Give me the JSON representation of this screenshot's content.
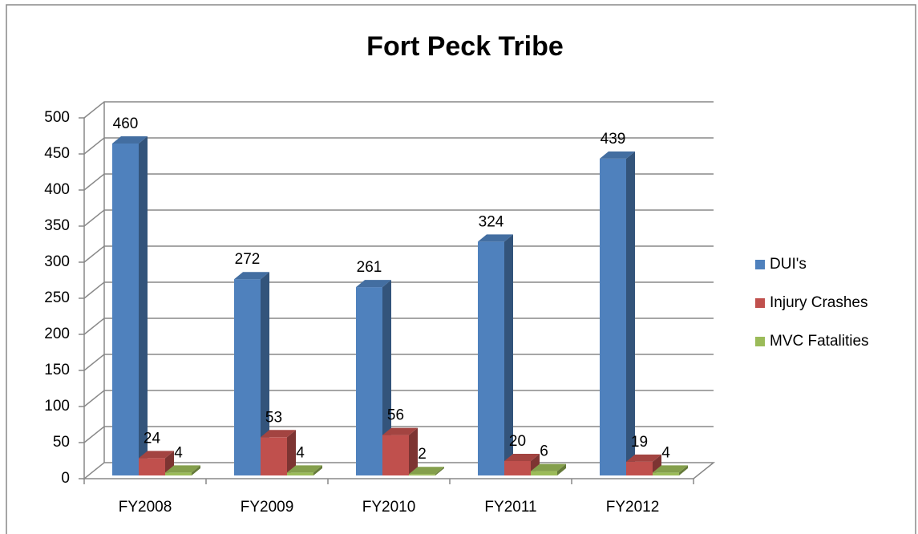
{
  "chart_data": {
    "type": "bar3d",
    "title": "Fort Peck Tribe",
    "categories": [
      "FY2008",
      "FY2009",
      "FY2010",
      "FY2011",
      "FY2012"
    ],
    "series": [
      {
        "name": "DUI's",
        "color": "#4f81bd",
        "values": [
          460,
          272,
          261,
          324,
          439
        ]
      },
      {
        "name": "Injury Crashes",
        "color": "#c0504d",
        "values": [
          24,
          53,
          56,
          20,
          19
        ]
      },
      {
        "name": "MVC Fatalities",
        "color": "#9bbb59",
        "values": [
          4,
          4,
          2,
          6,
          4
        ]
      }
    ],
    "ylim": [
      0,
      500
    ],
    "yticks": [
      0,
      50,
      100,
      150,
      200,
      250,
      300,
      350,
      400,
      450,
      500
    ],
    "grid": true,
    "legend": "right"
  }
}
